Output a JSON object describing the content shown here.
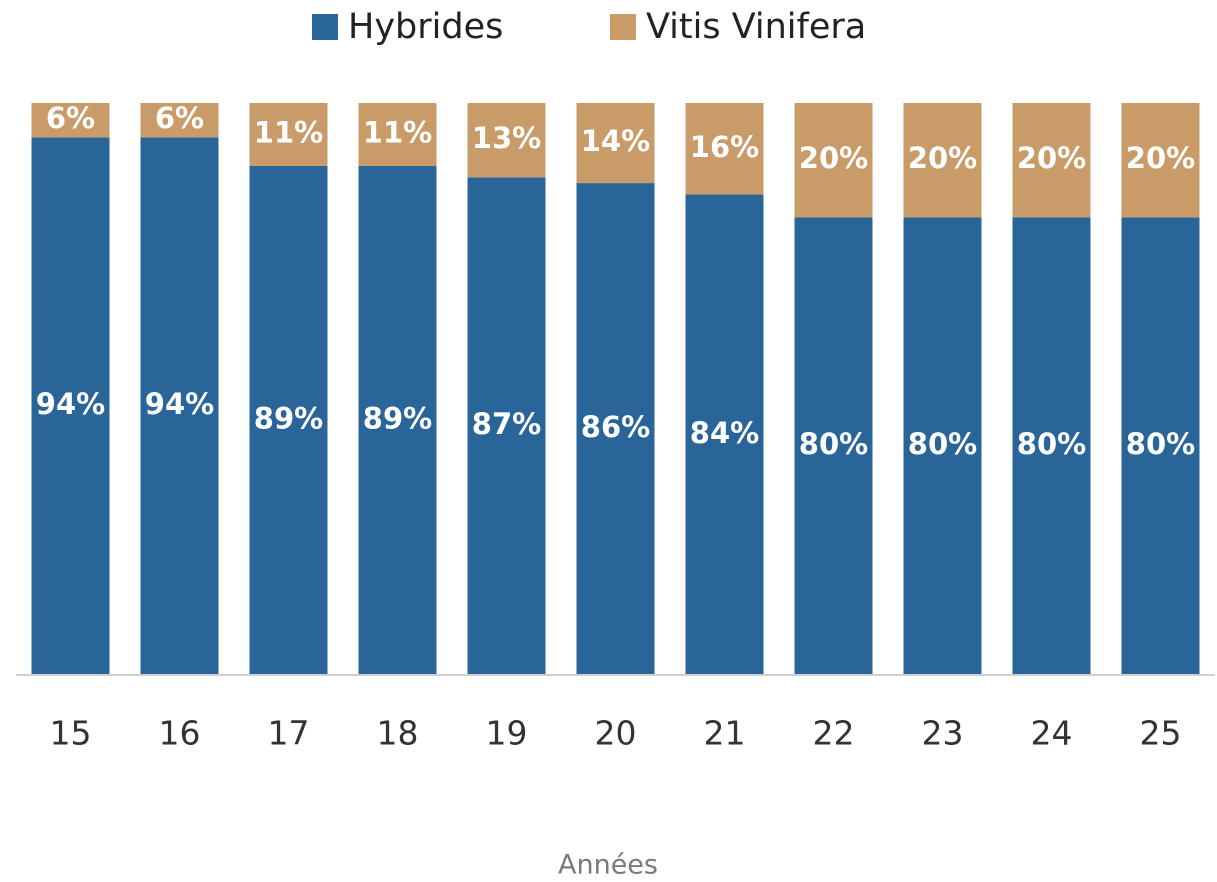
{
  "chart_data": {
    "type": "bar",
    "stacked": true,
    "x_label": "Années",
    "categories": [
      "15",
      "16",
      "17",
      "18",
      "19",
      "20",
      "21",
      "22",
      "23",
      "24",
      "25"
    ],
    "series": [
      {
        "name": "Hybrides",
        "color": "#2a6599",
        "values": [
          94,
          94,
          89,
          89,
          87,
          86,
          84,
          80,
          80,
          80,
          80
        ],
        "value_labels": [
          "94%",
          "94%",
          "89%",
          "89%",
          "87%",
          "86%",
          "84%",
          "80%",
          "80%",
          "80%",
          "80%"
        ]
      },
      {
        "name": "Vitis Vinifera",
        "color": "#c99b68",
        "values": [
          6,
          6,
          11,
          11,
          13,
          14,
          16,
          20,
          20,
          20,
          20
        ],
        "value_labels": [
          "6%",
          "6%",
          "11%",
          "11%",
          "13%",
          "14%",
          "16%",
          "20%",
          "20%",
          "20%",
          "20%"
        ]
      }
    ],
    "ylim": [
      0,
      100
    ],
    "legend": "top"
  }
}
